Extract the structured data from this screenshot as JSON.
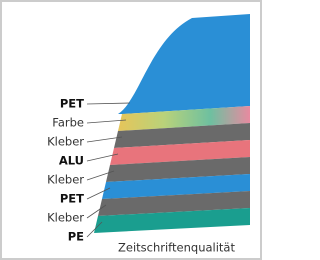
{
  "layers": [
    "PET",
    "Farbe",
    "Kleber",
    "ALU",
    "Kleber",
    "PET",
    "Kleber",
    "PE"
  ],
  "caption": "Zeitschriftenqualität"
}
